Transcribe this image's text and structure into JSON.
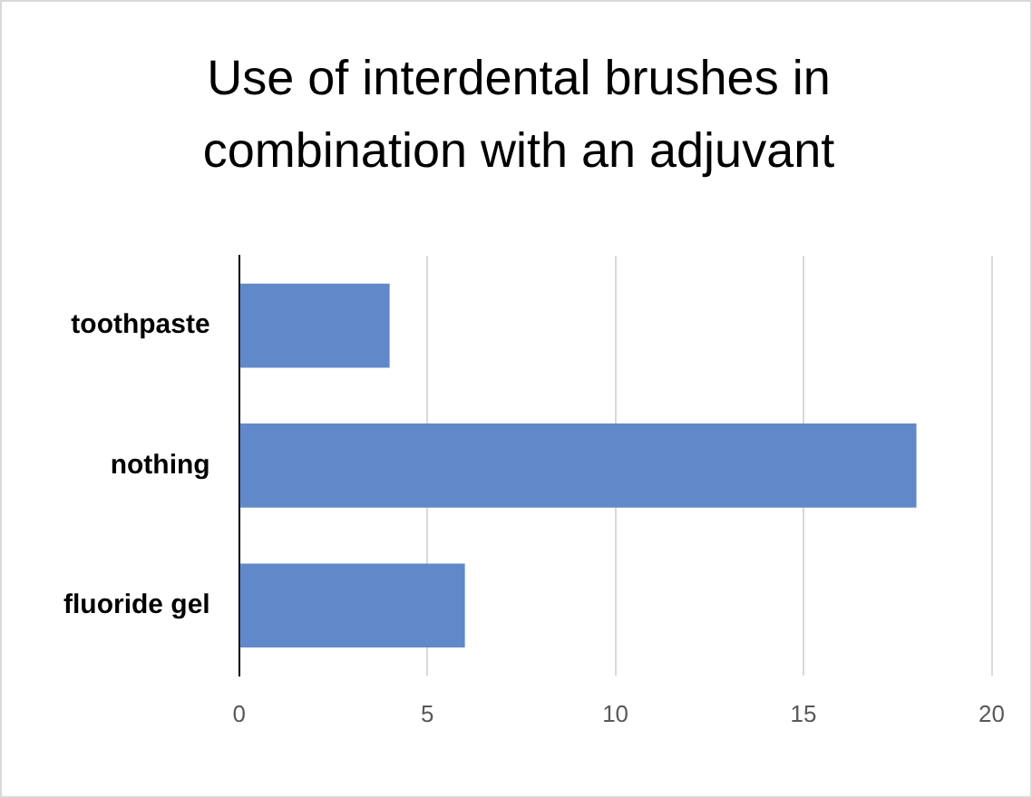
{
  "chart_data": {
    "type": "bar",
    "orientation": "horizontal",
    "title": "Use of interdental brushes in combination with an adjuvant",
    "categories": [
      "toothpaste",
      "nothing",
      "fluoride gel"
    ],
    "values": [
      4,
      18,
      6
    ],
    "color": "#6189c9",
    "xlim": [
      0,
      20
    ],
    "xticks": [
      0,
      5,
      10,
      15,
      20
    ],
    "grid": "x",
    "legend": false
  }
}
